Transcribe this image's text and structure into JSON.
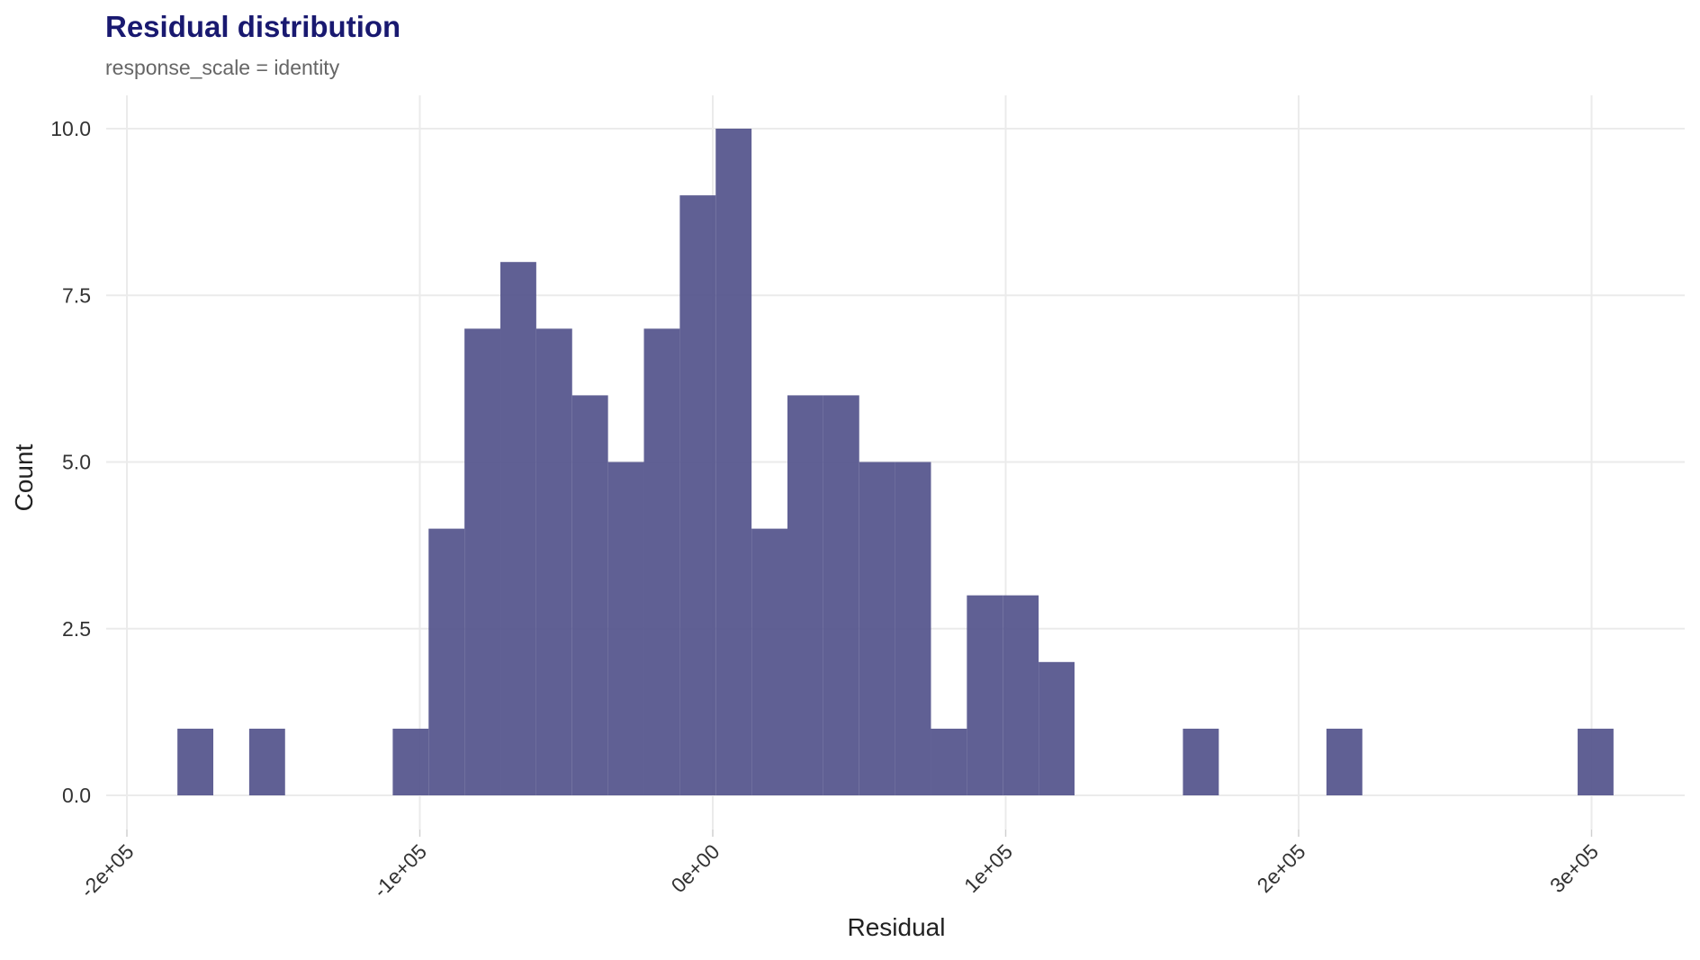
{
  "chart_data": {
    "type": "histogram",
    "title": "Residual distribution",
    "subtitle": "response_scale = identity",
    "xlabel": "Residual",
    "ylabel": "Count",
    "xlim": [
      -215000,
      332000
    ],
    "ylim": [
      -0.5,
      10.5
    ],
    "x_ticks": [
      {
        "value": -200000,
        "label": "-2e+05"
      },
      {
        "value": -100000,
        "label": "-1e+05"
      },
      {
        "value": 0,
        "label": "0e+00"
      },
      {
        "value": 100000,
        "label": "1e+05"
      },
      {
        "value": 200000,
        "label": "2e+05"
      },
      {
        "value": 300000,
        "label": "3e+05"
      }
    ],
    "y_ticks": [
      {
        "value": 0,
        "label": "0.0"
      },
      {
        "value": 2.5,
        "label": "2.5"
      },
      {
        "value": 5,
        "label": "5.0"
      },
      {
        "value": 7.5,
        "label": "7.5"
      },
      {
        "value": 10,
        "label": "10.0"
      }
    ],
    "bins": [
      {
        "x0": -182750,
        "x1": -170500,
        "count": 1
      },
      {
        "x0": -158250,
        "x1": -146000,
        "count": 1
      },
      {
        "x0": -109250,
        "x1": -97000,
        "count": 1
      },
      {
        "x0": -97000,
        "x1": -84750,
        "count": 4
      },
      {
        "x0": -84750,
        "x1": -72500,
        "count": 7
      },
      {
        "x0": -72500,
        "x1": -60250,
        "count": 8
      },
      {
        "x0": -60250,
        "x1": -48000,
        "count": 7
      },
      {
        "x0": -48000,
        "x1": -35750,
        "count": 6
      },
      {
        "x0": -35750,
        "x1": -23500,
        "count": 5
      },
      {
        "x0": -23500,
        "x1": -11250,
        "count": 7
      },
      {
        "x0": -11250,
        "x1": 1000,
        "count": 9
      },
      {
        "x0": 1000,
        "x1": 13250,
        "count": 10
      },
      {
        "x0": 13250,
        "x1": 25500,
        "count": 4
      },
      {
        "x0": 25500,
        "x1": 37750,
        "count": 6
      },
      {
        "x0": 37750,
        "x1": 50000,
        "count": 6
      },
      {
        "x0": 50000,
        "x1": 62250,
        "count": 5
      },
      {
        "x0": 62250,
        "x1": 74500,
        "count": 5
      },
      {
        "x0": 74500,
        "x1": 86750,
        "count": 1
      },
      {
        "x0": 86750,
        "x1": 99000,
        "count": 3
      },
      {
        "x0": 99000,
        "x1": 111250,
        "count": 3
      },
      {
        "x0": 111250,
        "x1": 123500,
        "count": 2
      },
      {
        "x0": 160500,
        "x1": 172750,
        "count": 1
      },
      {
        "x0": 209500,
        "x1": 221750,
        "count": 1
      },
      {
        "x0": 295250,
        "x1": 307500,
        "count": 1
      }
    ],
    "grid": true,
    "bar_color": "#505089",
    "bar_opacity": 0.91,
    "title_color": "#191970",
    "subtitle_color": "#666666"
  }
}
